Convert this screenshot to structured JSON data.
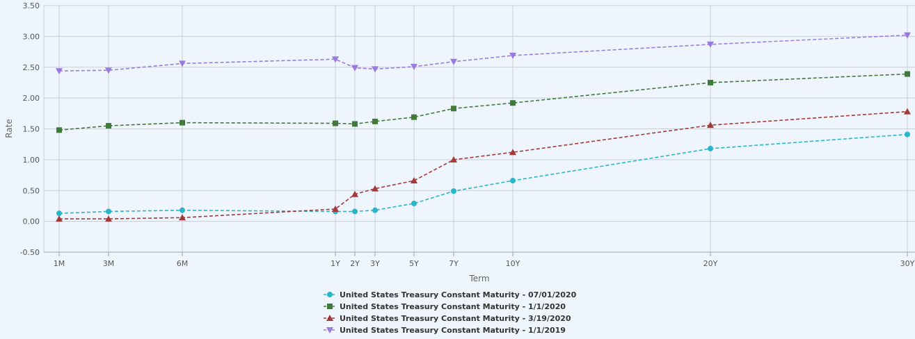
{
  "chart_data": {
    "type": "line",
    "xlabel": "Term",
    "ylabel": "Rate",
    "ylim": [
      -0.5,
      3.5
    ],
    "yticks": [
      "-0.50",
      "0.00",
      "0.50",
      "1.00",
      "1.50",
      "2.00",
      "2.50",
      "3.00",
      "3.50"
    ],
    "categories": [
      "1M",
      "3M",
      "6M",
      "1Y",
      "2Y",
      "3Y",
      "5Y",
      "7Y",
      "10Y",
      "20Y",
      "30Y"
    ],
    "x_years": [
      0.0833,
      0.25,
      0.5,
      1,
      2,
      3,
      5,
      7,
      10,
      20,
      30
    ],
    "grid": true,
    "legend_position": "bottom-center",
    "series": [
      {
        "name": "United States Treasury Constant Maturity - 07/01/2020",
        "color": "#2ab6c9",
        "marker": "circle",
        "values": [
          0.13,
          0.16,
          0.18,
          0.16,
          0.16,
          0.18,
          0.29,
          0.49,
          0.66,
          1.18,
          1.41
        ]
      },
      {
        "name": "United States Treasury Constant Maturity - 1/1/2020",
        "color": "#3f7a3a",
        "marker": "square",
        "values": [
          1.48,
          1.55,
          1.6,
          1.59,
          1.58,
          1.62,
          1.69,
          1.83,
          1.92,
          2.25,
          2.39
        ]
      },
      {
        "name": "United States Treasury Constant Maturity - 3/19/2020",
        "color": "#a23a3a",
        "marker": "triangle",
        "values": [
          0.04,
          0.04,
          0.06,
          0.2,
          0.44,
          0.53,
          0.66,
          1.0,
          1.12,
          1.56,
          1.78
        ]
      },
      {
        "name": "United States Treasury Constant Maturity - 1/1/2019",
        "color": "#9b7ae0",
        "marker": "triangle-down",
        "values": [
          2.44,
          2.45,
          2.56,
          2.63,
          2.49,
          2.47,
          2.51,
          2.59,
          2.69,
          2.87,
          3.02
        ]
      }
    ]
  }
}
